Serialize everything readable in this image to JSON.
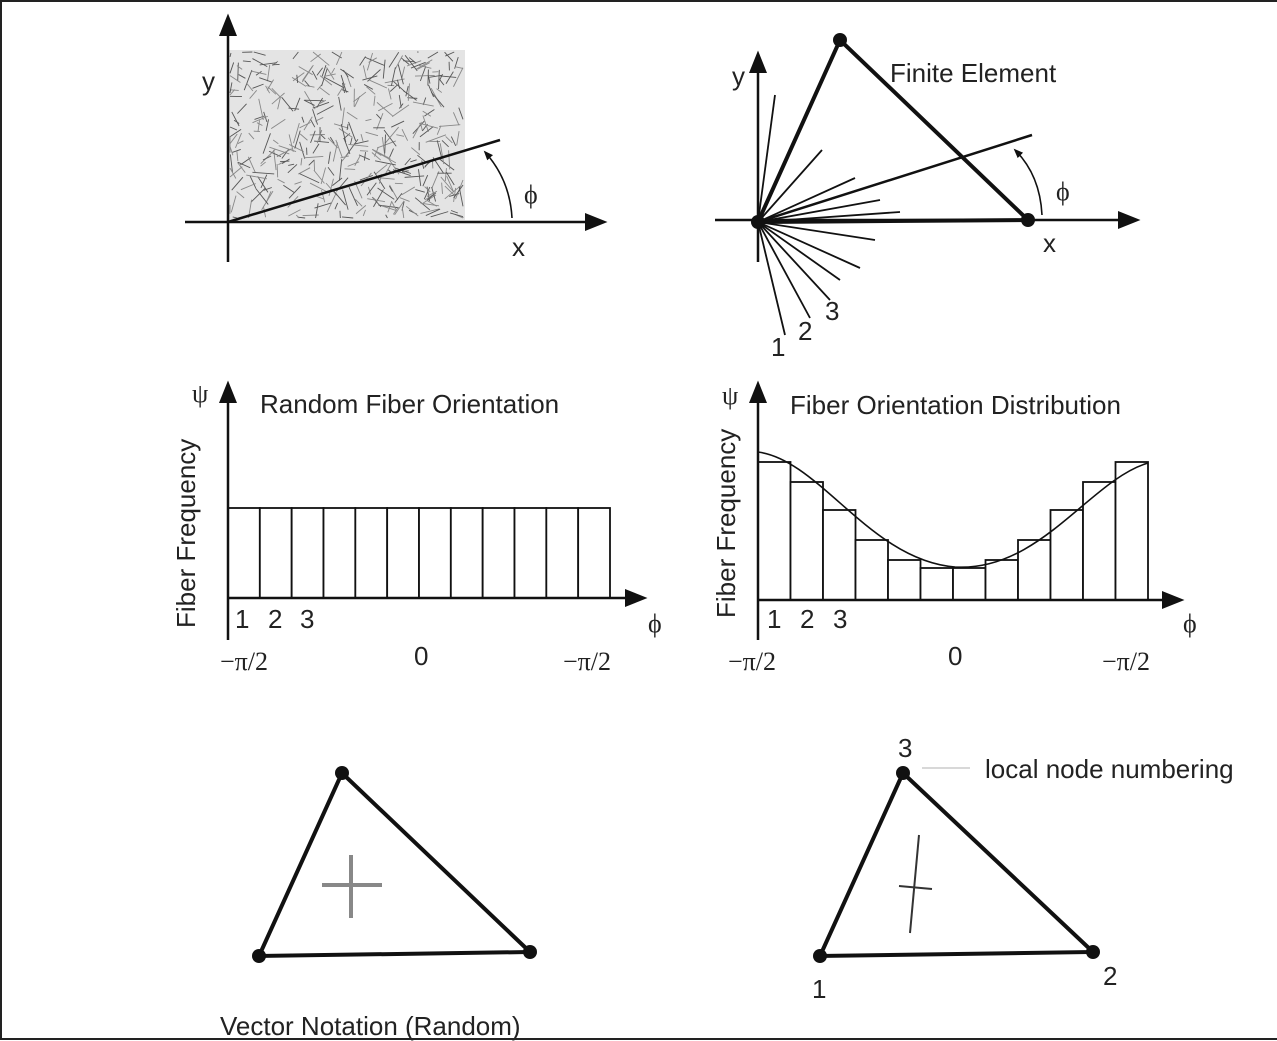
{
  "panels": [
    {
      "axis_y": "y",
      "axis_x": "x",
      "angle": "ϕ"
    },
    {
      "title": "Finite Element",
      "axis_y": "y",
      "axis_x": "x",
      "angle": "ϕ",
      "fiber_numbers": [
        "1",
        "2",
        "3"
      ]
    },
    {
      "title": "Random Fiber Orientation",
      "y_symbol": "ψ",
      "y_label": "Fiber Frequency",
      "x_symbol": "ϕ",
      "bin_numbers": [
        "1",
        "2",
        "3"
      ],
      "x_ticks": [
        "−π/2",
        "0",
        "−π/2"
      ]
    },
    {
      "title": "Fiber Orientation Distribution",
      "y_symbol": "ψ",
      "y_label": "Fiber Frequency",
      "x_symbol": "ϕ",
      "bin_numbers": [
        "1",
        "2",
        "3"
      ],
      "x_ticks": [
        "−π/2",
        "0",
        "−π/2"
      ]
    },
    {
      "caption": "Vector Notation (Random)"
    },
    {
      "annotation": "local node numbering",
      "nodes": [
        "1",
        "2",
        "3"
      ]
    }
  ]
}
